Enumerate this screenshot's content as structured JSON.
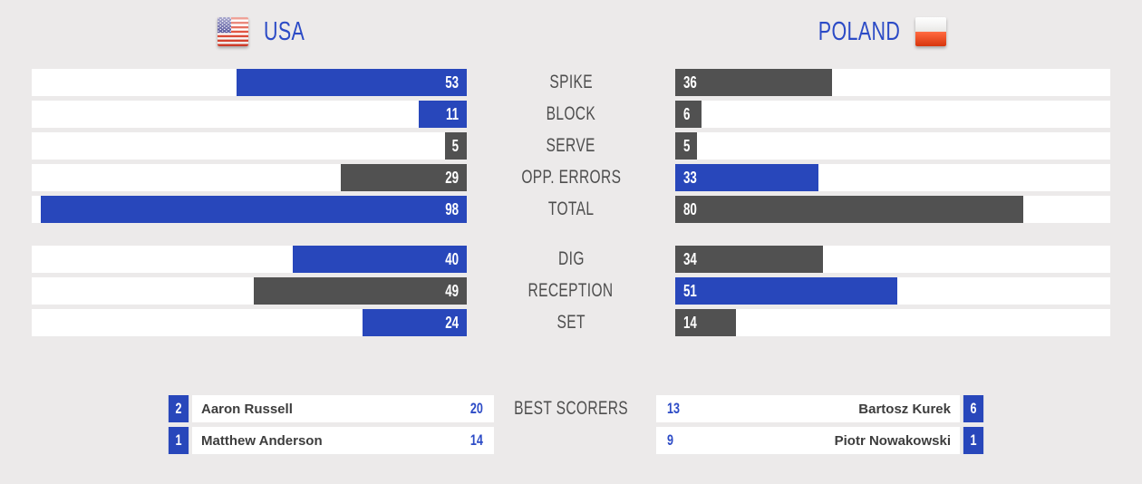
{
  "header": {
    "left_team": {
      "name": "USA"
    },
    "right_team": {
      "name": "POLAND"
    }
  },
  "chart_data": {
    "type": "bar",
    "orientation": "horizontal_mirrored",
    "categories": [
      "SPIKE",
      "BLOCK",
      "SERVE",
      "OPP. ERRORS",
      "TOTAL",
      "DIG",
      "RECEPTION",
      "SET"
    ],
    "series": [
      {
        "name": "USA",
        "values": [
          53,
          11,
          5,
          29,
          98,
          40,
          49,
          24
        ]
      },
      {
        "name": "POLAND",
        "values": [
          36,
          6,
          5,
          33,
          80,
          34,
          51,
          14
        ]
      }
    ],
    "group_break_after": "TOTAL",
    "value_range": [
      0,
      100
    ],
    "highlight_rule": "higher value bar is blue, lower or tied bar is dark gray",
    "legend_position": "top (team headers with flags)"
  },
  "stats": {
    "rows": [
      {
        "label": "SPIKE",
        "usa": {
          "value": 53,
          "highlight": true
        },
        "poland": {
          "value": 36,
          "highlight": false
        },
        "group": 1
      },
      {
        "label": "BLOCK",
        "usa": {
          "value": 11,
          "highlight": true
        },
        "poland": {
          "value": 6,
          "highlight": false
        },
        "group": 1
      },
      {
        "label": "SERVE",
        "usa": {
          "value": 5,
          "highlight": false
        },
        "poland": {
          "value": 5,
          "highlight": false
        },
        "group": 1
      },
      {
        "label": "OPP. ERRORS",
        "usa": {
          "value": 29,
          "highlight": false
        },
        "poland": {
          "value": 33,
          "highlight": true
        },
        "group": 1
      },
      {
        "label": "TOTAL",
        "usa": {
          "value": 98,
          "highlight": true
        },
        "poland": {
          "value": 80,
          "highlight": false
        },
        "group": 1
      },
      {
        "label": "DIG",
        "usa": {
          "value": 40,
          "highlight": true
        },
        "poland": {
          "value": 34,
          "highlight": false
        },
        "group": 2
      },
      {
        "label": "RECEPTION",
        "usa": {
          "value": 49,
          "highlight": false
        },
        "poland": {
          "value": 51,
          "highlight": true
        },
        "group": 2
      },
      {
        "label": "SET",
        "usa": {
          "value": 24,
          "highlight": true
        },
        "poland": {
          "value": 14,
          "highlight": false
        },
        "group": 2
      }
    ]
  },
  "best_scorers": {
    "label": "BEST SCORERS",
    "usa": [
      {
        "jersey": 2,
        "name": "Aaron Russell",
        "points": 20
      },
      {
        "jersey": 1,
        "name": "Matthew Anderson",
        "points": 14
      }
    ],
    "poland": [
      {
        "jersey": 6,
        "name": "Bartosz Kurek",
        "points": 13
      },
      {
        "jersey": 1,
        "name": "Piotr Nowakowski",
        "points": 9
      }
    ]
  },
  "colors": {
    "accent_blue": "#2847BB",
    "text_blue": "#2C4BC6",
    "bar_gray": "#515151",
    "background": "#ECEAEA",
    "label_gray": "#4E4E4E",
    "name_gray": "#3D3D3D",
    "track_white": "#FFFFFF"
  }
}
